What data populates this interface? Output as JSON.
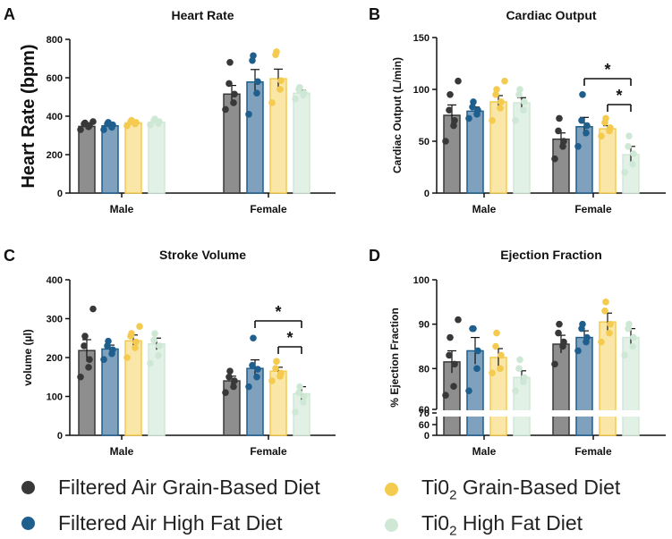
{
  "colors": {
    "fa_gbd": "#383838",
    "fa_hfd": "#1f5f8e",
    "tio2_gbd": "#f4cb4e",
    "tio2_hfd": "#cfe8d6",
    "fa_gbd_fill": "#8e8e8e",
    "fa_hfd_fill": "#7fa1bd",
    "tio2_gbd_fill": "#fae6a6",
    "tio2_hfd_fill": "#e2f1e6"
  },
  "legend": [
    {
      "key": "fa_gbd",
      "label": "Filtered Air Grain-Based Diet",
      "sub": ""
    },
    {
      "key": "tio2_gbd",
      "label": "Ti0",
      "sub": "2",
      "rest": " Grain-Based Diet"
    },
    {
      "key": "fa_hfd",
      "label": "Filtered Air High Fat Diet",
      "sub": ""
    },
    {
      "key": "tio2_hfd",
      "label": "Ti0",
      "sub": "2",
      "rest": " High Fat Diet"
    }
  ],
  "chart_data": [
    {
      "panel": "A",
      "type": "bar",
      "title": "Heart Rate",
      "ylabel": "Heart Rate (bpm)",
      "ylim": [
        0,
        800
      ],
      "yticks": [
        0,
        200,
        400,
        600,
        800
      ],
      "categories": [
        "Male",
        "Female"
      ],
      "series": [
        {
          "key": "fa_gbd",
          "values": [
            347,
            515
          ],
          "errors": [
            15,
            45
          ],
          "points": [
            [
              330,
              345,
              352,
              360,
              365,
              372
            ],
            [
              435,
              470,
              515,
              570,
              680
            ]
          ]
        },
        {
          "key": "fa_hfd",
          "values": [
            350,
            578
          ],
          "errors": [
            12,
            65
          ],
          "points": [
            [
              330,
              342,
              355,
              360,
              368
            ],
            [
              410,
              520,
              580,
              690,
              715
            ]
          ]
        },
        {
          "key": "tio2_gbd",
          "values": [
            365,
            595
          ],
          "errors": [
            8,
            50
          ],
          "points": [
            [
              350,
              360,
              368,
              372,
              378
            ],
            [
              470,
              540,
              585,
              720,
              735
            ]
          ]
        },
        {
          "key": "tio2_hfd",
          "values": [
            368,
            520
          ],
          "errors": [
            8,
            15
          ],
          "points": [
            [
              355,
              362,
              372,
              378,
              385
            ],
            [
              490,
              510,
              520,
              540,
              550
            ]
          ]
        }
      ],
      "annotations": []
    },
    {
      "panel": "B",
      "type": "bar",
      "title": "Cardiac Output",
      "ylabel": "Cardiac Output (L/min)",
      "ylim": [
        0,
        150
      ],
      "yticks": [
        0,
        50,
        100,
        150
      ],
      "categories": [
        "Male",
        "Female"
      ],
      "series": [
        {
          "key": "fa_gbd",
          "values": [
            75,
            52
          ],
          "errors": [
            10,
            6
          ],
          "points": [
            [
              50,
              65,
              70,
              80,
              95,
              108
            ],
            [
              33,
              45,
              50,
              60,
              72
            ]
          ]
        },
        {
          "key": "fa_hfd",
          "values": [
            79,
            64
          ],
          "errors": [
            4,
            9
          ],
          "points": [
            [
              72,
              76,
              80,
              83,
              88
            ],
            [
              45,
              58,
              65,
              70,
              95
            ]
          ]
        },
        {
          "key": "tio2_gbd",
          "values": [
            88,
            62
          ],
          "errors": [
            6,
            3
          ],
          "points": [
            [
              70,
              82,
              88,
              95,
              100,
              108
            ],
            [
              55,
              60,
              63,
              68,
              72
            ]
          ]
        },
        {
          "key": "tio2_hfd",
          "values": [
            87,
            37
          ],
          "errors": [
            5,
            8
          ],
          "points": [
            [
              70,
              80,
              88,
              95,
              100
            ],
            [
              20,
              28,
              38,
              45,
              55
            ]
          ]
        }
      ],
      "annotations": [
        {
          "from": [
            1,
            1
          ],
          "to": [
            1,
            3
          ],
          "label": "*"
        },
        {
          "from": [
            1,
            2
          ],
          "to": [
            1,
            3
          ],
          "label": "*"
        }
      ]
    },
    {
      "panel": "C",
      "type": "bar",
      "title": "Stroke Volume",
      "ylabel": "volume  (µl)",
      "ylim": [
        0,
        400
      ],
      "yticks": [
        0,
        100,
        200,
        300,
        400
      ],
      "categories": [
        "Male",
        "Female"
      ],
      "series": [
        {
          "key": "fa_gbd",
          "values": [
            218,
            140
          ],
          "errors": [
            28,
            12
          ],
          "points": [
            [
              150,
              175,
              195,
              230,
              255,
              325
            ],
            [
              110,
              125,
              140,
              150,
              165
            ]
          ]
        },
        {
          "key": "fa_hfd",
          "values": [
            222,
            172
          ],
          "errors": [
            10,
            22
          ],
          "points": [
            [
              195,
              210,
              220,
              230,
              242
            ],
            [
              125,
              150,
              170,
              180,
              250
            ]
          ]
        },
        {
          "key": "tio2_gbd",
          "values": [
            243,
            165
          ],
          "errors": [
            15,
            10
          ],
          "points": [
            [
              200,
              225,
              240,
              255,
              262,
              280
            ],
            [
              140,
              152,
              160,
              172,
              190
            ]
          ]
        },
        {
          "key": "tio2_hfd",
          "values": [
            235,
            107
          ],
          "errors": [
            15,
            18
          ],
          "points": [
            [
              185,
              205,
              230,
              245,
              262
            ],
            [
              60,
              85,
              100,
              110,
              125
            ]
          ]
        }
      ],
      "annotations": [
        {
          "from": [
            1,
            1
          ],
          "to": [
            1,
            3
          ],
          "label": "*"
        },
        {
          "from": [
            1,
            2
          ],
          "to": [
            1,
            3
          ],
          "label": "*"
        }
      ]
    },
    {
      "panel": "D",
      "type": "bar",
      "title": "Ejection Fraction",
      "ylabel": "% Ejection Fraction",
      "ylim": [
        60,
        100
      ],
      "yticks": [
        60,
        70,
        80,
        90,
        100
      ],
      "broken_axis": true,
      "categories": [
        "Male",
        "Female"
      ],
      "series": [
        {
          "key": "fa_gbd",
          "values": [
            81.5,
            85.5
          ],
          "errors": [
            2.5,
            2
          ],
          "points": [
            [
              74,
              76,
              81,
              83,
              87,
              91
            ],
            [
              81,
              85,
              86,
              88,
              90
            ]
          ]
        },
        {
          "key": "fa_hfd",
          "values": [
            84,
            87
          ],
          "errors": [
            3,
            1.5
          ],
          "points": [
            [
              75,
              80,
              84,
              89,
              89
            ],
            [
              84,
              86,
              87,
              89,
              90
            ]
          ]
        },
        {
          "key": "tio2_gbd",
          "values": [
            82.5,
            90.5
          ],
          "errors": [
            2,
            2
          ],
          "points": [
            [
              79,
              80,
              83,
              85,
              88
            ],
            [
              86,
              88,
              90,
              93,
              95
            ]
          ]
        },
        {
          "key": "tio2_hfd",
          "values": [
            78,
            87
          ],
          "errors": [
            1.5,
            2
          ],
          "points": [
            [
              75,
              77,
              78,
              80,
              82
            ],
            [
              83,
              85,
              87,
              89,
              90
            ]
          ]
        }
      ],
      "annotations": []
    }
  ]
}
